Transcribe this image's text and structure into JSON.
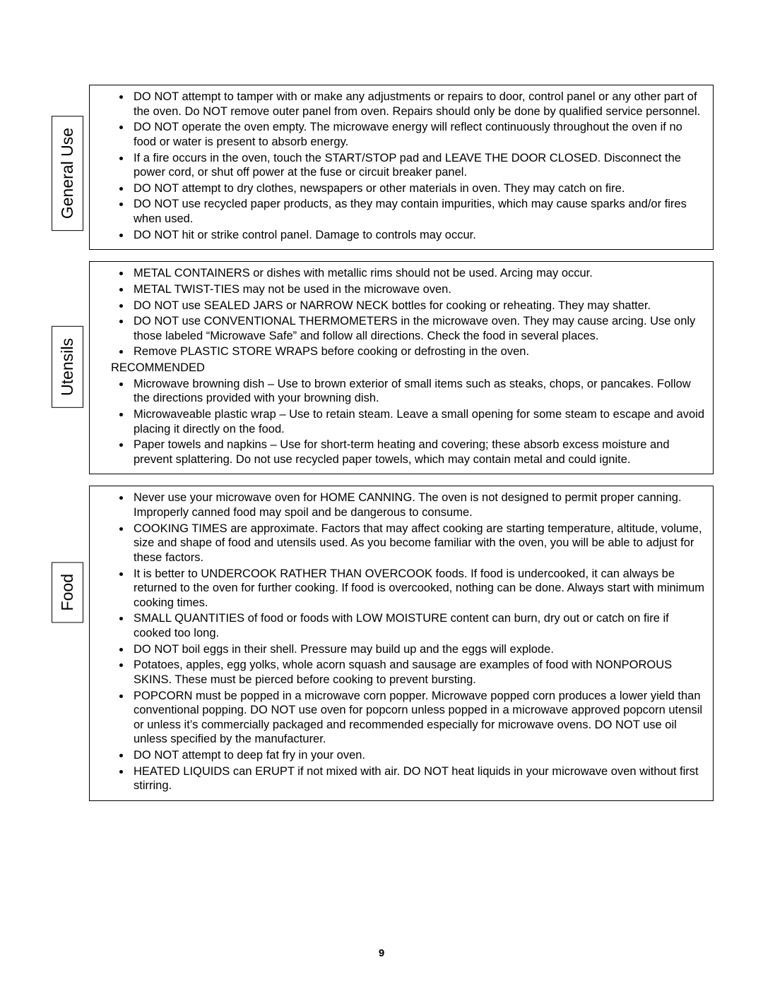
{
  "page_number": "9",
  "sections": [
    {
      "id": "general",
      "label": "General Use",
      "paragraphs": [],
      "items_top": [
        "DO NOT attempt to tamper with or make any adjustments or repairs to door, control panel or any other part of the oven.  Do NOT remove outer panel from oven.  Repairs should only be done by qualified service personnel.",
        "DO NOT operate the oven empty.  The microwave energy will reflect continuously throughout the oven if no food or water is present to absorb energy.",
        "If a fire occurs in the oven, touch the START/STOP pad and LEAVE THE DOOR CLOSED.  Disconnect the power cord, or shut off power at the fuse or circuit breaker panel.",
        "DO NOT attempt to dry clothes, newspapers or other materials in oven.  They may catch on fire.",
        "DO NOT use recycled paper products, as they may contain impurities, which may cause sparks and/or fires when used.",
        "DO NOT hit or strike control panel.  Damage to controls may occur."
      ],
      "subheading": null,
      "items_bottom": []
    },
    {
      "id": "utensils",
      "label": "Utensils",
      "paragraphs": [],
      "items_top": [
        "METAL CONTAINERS or dishes with metallic rims should not be used.  Arcing may occur.",
        "METAL TWIST-TIES may not be used in the microwave oven.",
        "DO NOT use SEALED JARS or NARROW NECK bottles for cooking or reheating.  They may shatter.",
        "DO NOT use CONVENTIONAL THERMOMETERS in the microwave oven.  They may cause arcing. Use only those labeled “Microwave Safe” and follow all directions. Check the food in several places.",
        "Remove PLASTIC STORE WRAPS before cooking or defrosting in the oven."
      ],
      "subheading": "RECOMMENDED",
      "items_bottom": [
        "Microwave browning dish – Use to brown exterior of small items such as steaks, chops, or pancakes. Follow the directions provided with your browning dish.",
        "Microwaveable plastic wrap – Use to retain steam. Leave a small opening for some steam to escape and avoid placing it directly on the food.",
        "Paper towels and napkins – Use for short-term heating and covering; these absorb excess moisture and prevent splattering. Do not use recycled paper towels, which may contain metal and could ignite."
      ]
    },
    {
      "id": "food",
      "label": "Food",
      "paragraphs": [],
      "items_top": [
        "Never use your microwave oven for HOME CANNING.  The oven is not designed to permit proper canning.  Improperly canned food may spoil and be dangerous to consume.",
        "COOKING TIMES are approximate.  Factors that may affect cooking are starting temperature, altitude, volume, size and shape of food and utensils used.  As you become familiar with the oven, you will be able to adjust for these factors.",
        "It is better to UNDERCOOK RATHER THAN OVERCOOK foods.  If food is undercooked, it can always be returned to the oven for further cooking.  If food is overcooked, nothing can be done.  Always start with minimum cooking times.",
        "SMALL QUANTITIES of food or foods with LOW MOISTURE content can burn, dry out or catch on fire if cooked too long.",
        "DO NOT boil eggs in their shell.  Pressure may build up and the eggs will explode.",
        "Potatoes, apples, egg yolks, whole acorn squash and sausage are examples of food with NONPOROUS SKINS.  These must be pierced before cooking to prevent bursting.",
        "POPCORN must be popped in a microwave corn popper.  Microwave popped corn produces a lower yield than conventional popping.  DO NOT use oven for popcorn unless popped in a microwave approved popcorn utensil or unless it’s commercially packaged and recommended especially for microwave ovens.  DO NOT use oil unless specified by the manufacturer.",
        "DO NOT attempt to deep fat fry in your oven.",
        "HEATED LIQUIDS can ERUPT if not mixed with air.  DO NOT heat liquids in your microwave oven without first stirring."
      ],
      "subheading": null,
      "items_bottom": []
    }
  ]
}
